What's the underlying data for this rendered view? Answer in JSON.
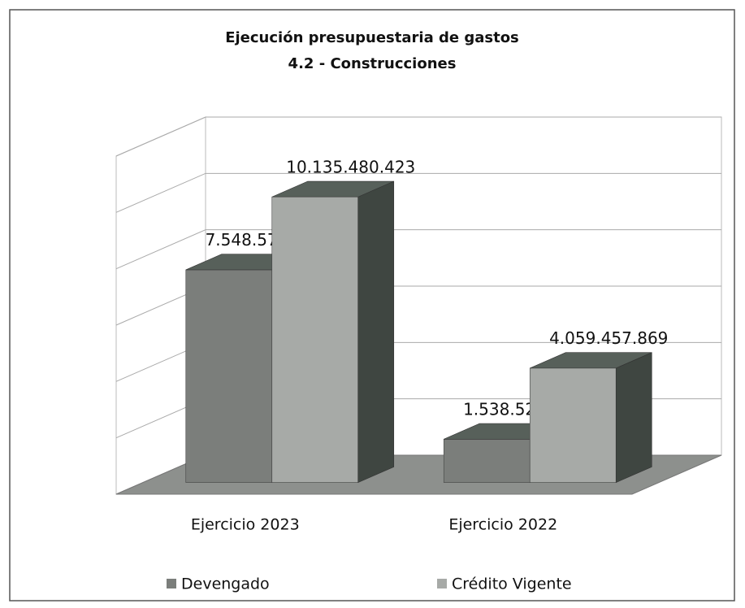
{
  "chart_data": {
    "type": "bar3d",
    "title": "Ejecución presupuestaria de gastos",
    "subtitle": "4.2 - Construcciones",
    "categories": [
      "Ejercicio 2023",
      "Ejercicio 2022"
    ],
    "series": [
      {
        "name": "Devengado",
        "color": "#7b7e7b",
        "values": [
          7548578507,
          1538525925
        ],
        "value_labels": [
          "7.548.578.507",
          "1.538.525.925"
        ]
      },
      {
        "name": "Crédito Vigente",
        "color": "#a7aaa7",
        "values": [
          10135480423,
          4059457869
        ],
        "value_labels": [
          "10.135.480.423",
          "4.059.457.869"
        ]
      }
    ],
    "ylim": [
      0,
      12000000000
    ],
    "yticks": [
      0,
      2000000000,
      4000000000,
      6000000000,
      8000000000,
      10000000000,
      12000000000
    ],
    "grid": true
  }
}
